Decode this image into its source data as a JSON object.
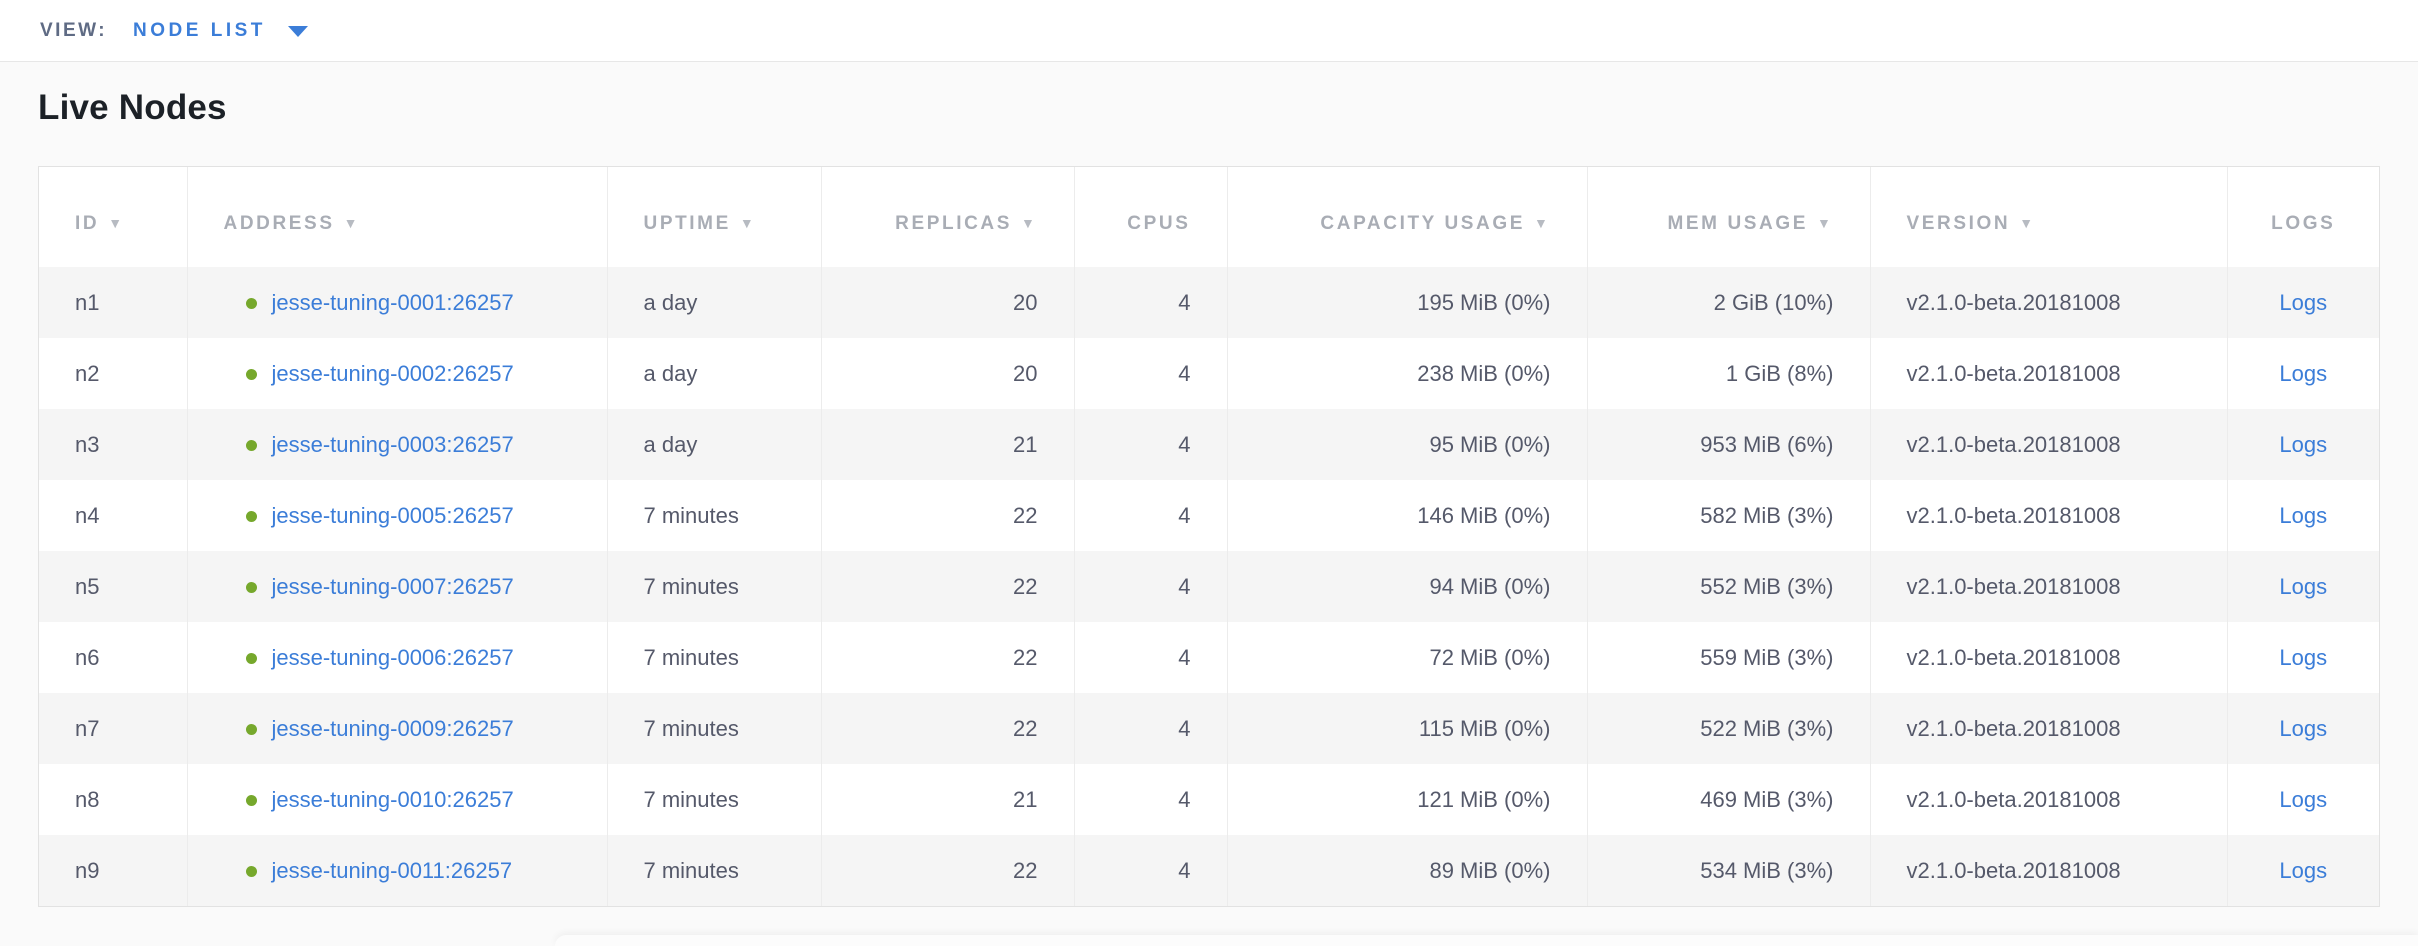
{
  "view_bar": {
    "label": "VIEW:",
    "selected": "NODE LIST"
  },
  "page": {
    "title": "Live Nodes"
  },
  "table": {
    "columns": [
      {
        "key": "id",
        "label": "ID",
        "sortable": true,
        "align": "left"
      },
      {
        "key": "address",
        "label": "ADDRESS",
        "sortable": true,
        "align": "left"
      },
      {
        "key": "uptime",
        "label": "UPTIME",
        "sortable": true,
        "align": "left"
      },
      {
        "key": "replicas",
        "label": "REPLICAS",
        "sortable": true,
        "align": "right"
      },
      {
        "key": "cpus",
        "label": "CPUS",
        "sortable": false,
        "align": "right"
      },
      {
        "key": "capacity",
        "label": "CAPACITY USAGE",
        "sortable": true,
        "align": "right"
      },
      {
        "key": "mem",
        "label": "MEM USAGE",
        "sortable": true,
        "align": "right"
      },
      {
        "key": "version",
        "label": "VERSION",
        "sortable": true,
        "align": "left"
      },
      {
        "key": "logs",
        "label": "LOGS",
        "sortable": false,
        "align": "center"
      }
    ],
    "rows": [
      {
        "id": "n1",
        "address": "jesse-tuning-0001:26257",
        "uptime": "a day",
        "replicas": "20",
        "cpus": "4",
        "capacity": "195 MiB (0%)",
        "mem": "2 GiB (10%)",
        "version": "v2.1.0-beta.20181008",
        "logs": "Logs"
      },
      {
        "id": "n2",
        "address": "jesse-tuning-0002:26257",
        "uptime": "a day",
        "replicas": "20",
        "cpus": "4",
        "capacity": "238 MiB (0%)",
        "mem": "1 GiB (8%)",
        "version": "v2.1.0-beta.20181008",
        "logs": "Logs"
      },
      {
        "id": "n3",
        "address": "jesse-tuning-0003:26257",
        "uptime": "a day",
        "replicas": "21",
        "cpus": "4",
        "capacity": "95 MiB (0%)",
        "mem": "953 MiB (6%)",
        "version": "v2.1.0-beta.20181008",
        "logs": "Logs"
      },
      {
        "id": "n4",
        "address": "jesse-tuning-0005:26257",
        "uptime": "7 minutes",
        "replicas": "22",
        "cpus": "4",
        "capacity": "146 MiB (0%)",
        "mem": "582 MiB (3%)",
        "version": "v2.1.0-beta.20181008",
        "logs": "Logs"
      },
      {
        "id": "n5",
        "address": "jesse-tuning-0007:26257",
        "uptime": "7 minutes",
        "replicas": "22",
        "cpus": "4",
        "capacity": "94 MiB (0%)",
        "mem": "552 MiB (3%)",
        "version": "v2.1.0-beta.20181008",
        "logs": "Logs"
      },
      {
        "id": "n6",
        "address": "jesse-tuning-0006:26257",
        "uptime": "7 minutes",
        "replicas": "22",
        "cpus": "4",
        "capacity": "72 MiB (0%)",
        "mem": "559 MiB (3%)",
        "version": "v2.1.0-beta.20181008",
        "logs": "Logs"
      },
      {
        "id": "n7",
        "address": "jesse-tuning-0009:26257",
        "uptime": "7 minutes",
        "replicas": "22",
        "cpus": "4",
        "capacity": "115 MiB (0%)",
        "mem": "522 MiB (3%)",
        "version": "v2.1.0-beta.20181008",
        "logs": "Logs"
      },
      {
        "id": "n8",
        "address": "jesse-tuning-0010:26257",
        "uptime": "7 minutes",
        "replicas": "21",
        "cpus": "4",
        "capacity": "121 MiB (0%)",
        "mem": "469 MiB (3%)",
        "version": "v2.1.0-beta.20181008",
        "logs": "Logs"
      },
      {
        "id": "n9",
        "address": "jesse-tuning-0011:26257",
        "uptime": "7 minutes",
        "replicas": "22",
        "cpus": "4",
        "capacity": "89 MiB (0%)",
        "mem": "534 MiB (3%)",
        "version": "v2.1.0-beta.20181008",
        "logs": "Logs"
      }
    ]
  },
  "colors": {
    "accent_blue": "#3b7dd8",
    "node_live_green": "#76a82c",
    "header_text_gray": "#a9adb5",
    "body_text_slate": "#55596a",
    "row_alt_gray": "#f5f5f5"
  }
}
